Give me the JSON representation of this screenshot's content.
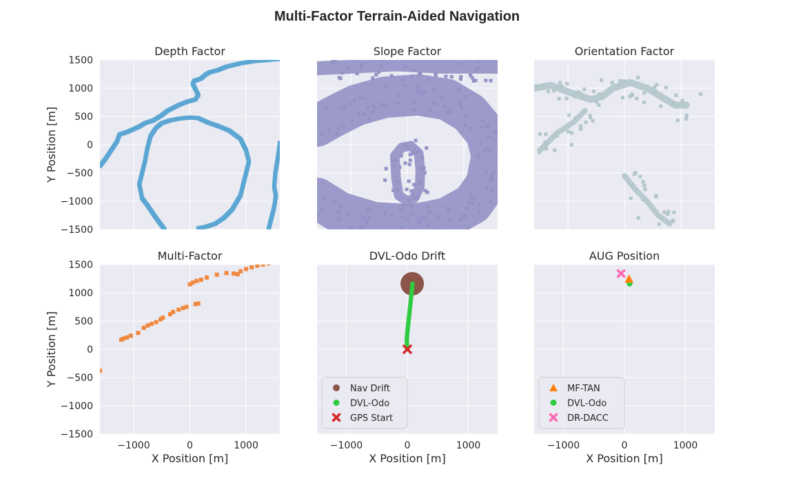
{
  "suptitle": "Multi-Factor Terrain-Aided Navigation",
  "colors": {
    "axes_bg": "#EAEAF2",
    "grid": "#FFFFFF",
    "depth": "#5BA6D3",
    "slope": "#9491C5",
    "orientation": "#B2C6CC",
    "multi": "#F0883E",
    "nav_drift": "#8B5549",
    "dvl_odo": "#2ECC40",
    "gps_start": "#D62728",
    "mf_tan": "#FF7F0E",
    "dr_dacc": "#FF69B4"
  },
  "chart_data": [
    {
      "type": "scatter",
      "title": "Depth Factor",
      "xlabel": "",
      "ylabel": "Y Position [m]",
      "xlim": [
        -1600,
        1600
      ],
      "ylim": [
        -1500,
        1500
      ],
      "xticks": [
        -1000,
        0,
        1000
      ],
      "yticks": [
        1500,
        1000,
        500,
        0,
        -500,
        -1000,
        -1500
      ],
      "ytick_labels": [
        "1500",
        "1000",
        "500",
        "0",
        "−500",
        "−1000",
        "−1500"
      ],
      "grid": true,
      "series": [
        {
          "kind": "contour",
          "color_key": "depth",
          "points": [
            [
              -1600,
              -380
            ],
            [
              -1500,
              -250
            ],
            [
              -1400,
              -100
            ],
            [
              -1300,
              50
            ],
            [
              -1250,
              180
            ],
            [
              -1100,
              230
            ],
            [
              -900,
              320
            ],
            [
              -800,
              380
            ],
            [
              -650,
              430
            ],
            [
              -500,
              520
            ],
            [
              -400,
              600
            ],
            [
              -200,
              700
            ],
            [
              -50,
              760
            ],
            [
              100,
              800
            ],
            [
              150,
              880
            ],
            [
              100,
              980
            ],
            [
              50,
              1080
            ],
            [
              80,
              1130
            ],
            [
              200,
              1170
            ],
            [
              280,
              1240
            ],
            [
              350,
              1280
            ],
            [
              500,
              1320
            ],
            [
              650,
              1380
            ],
            [
              900,
              1440
            ],
            [
              1150,
              1480
            ],
            [
              1400,
              1500
            ],
            [
              1600,
              1520
            ]
          ]
        },
        {
          "kind": "contour",
          "color_key": "depth",
          "points": [
            [
              -450,
              -1500
            ],
            [
              -600,
              -1300
            ],
            [
              -750,
              -1080
            ],
            [
              -850,
              -950
            ],
            [
              -900,
              -700
            ],
            [
              -850,
              -500
            ],
            [
              -800,
              -300
            ],
            [
              -760,
              -80
            ],
            [
              -700,
              150
            ],
            [
              -600,
              300
            ],
            [
              -500,
              380
            ],
            [
              -350,
              430
            ],
            [
              -200,
              460
            ],
            [
              0,
              480
            ],
            [
              150,
              470
            ],
            [
              300,
              400
            ],
            [
              500,
              330
            ],
            [
              700,
              250
            ],
            [
              900,
              100
            ],
            [
              1000,
              -100
            ],
            [
              1050,
              -300
            ],
            [
              1000,
              -500
            ],
            [
              950,
              -700
            ],
            [
              900,
              -900
            ],
            [
              750,
              -1150
            ],
            [
              600,
              -1300
            ],
            [
              450,
              -1400
            ],
            [
              300,
              -1450
            ],
            [
              150,
              -1480
            ]
          ]
        },
        {
          "kind": "contour",
          "color_key": "depth",
          "points": [
            [
              1600,
              30
            ],
            [
              1570,
              -200
            ],
            [
              1520,
              -500
            ],
            [
              1500,
              -750
            ],
            [
              1530,
              -900
            ],
            [
              1500,
              -1100
            ],
            [
              1450,
              -1300
            ],
            [
              1400,
              -1500
            ]
          ]
        }
      ]
    },
    {
      "type": "scatter",
      "title": "Slope Factor",
      "xlabel": "",
      "ylabel": "",
      "xlim": [
        -1600,
        1600
      ],
      "ylim": [
        -1500,
        1500
      ],
      "xticks": [
        -1000,
        0,
        1000
      ],
      "yticks": [
        1500,
        1000,
        500,
        0,
        -500,
        -1000,
        -1500
      ],
      "grid": true,
      "series": [
        {
          "kind": "band",
          "color_key": "slope",
          "width": 20,
          "points": [
            [
              -1600,
              1350
            ],
            [
              -1000,
              1380
            ],
            [
              -200,
              1420
            ],
            [
              600,
              1380
            ],
            [
              1600,
              1380
            ]
          ]
        },
        {
          "kind": "band",
          "color_key": "slope",
          "width": 60,
          "points": [
            [
              -1600,
              330
            ],
            [
              -1300,
              500
            ],
            [
              -900,
              700
            ],
            [
              -400,
              840
            ],
            [
              200,
              880
            ],
            [
              700,
              800
            ],
            [
              1100,
              560
            ],
            [
              1400,
              200
            ],
            [
              1500,
              -200
            ],
            [
              1400,
              -700
            ],
            [
              1150,
              -1050
            ],
            [
              700,
              -1300
            ],
            [
              100,
              -1420
            ],
            [
              -600,
              -1380
            ],
            [
              -1200,
              -1200
            ],
            [
              -1600,
              -950
            ]
          ]
        },
        {
          "kind": "band",
          "color_key": "slope",
          "width": 14,
          "points": [
            [
              0,
              -1000
            ],
            [
              -150,
              -900
            ],
            [
              -200,
              -600
            ],
            [
              -220,
              -200
            ],
            [
              -100,
              -50
            ],
            [
              60,
              -20
            ],
            [
              200,
              -150
            ],
            [
              230,
              -450
            ],
            [
              220,
              -750
            ],
            [
              120,
              -950
            ],
            [
              0,
              -1000
            ]
          ]
        }
      ]
    },
    {
      "type": "scatter",
      "title": "Orientation Factor",
      "xlabel": "",
      "ylabel": "",
      "xlim": [
        -1600,
        1600
      ],
      "ylim": [
        -1500,
        1500
      ],
      "xticks": [
        -1000,
        0,
        1000
      ],
      "yticks": [
        1500,
        1000,
        500,
        0,
        -500,
        -1000,
        -1500
      ],
      "grid": true,
      "series": [
        {
          "kind": "band",
          "color_key": "orientation",
          "width": 10,
          "points": [
            [
              -1600,
              1000
            ],
            [
              -1300,
              1050
            ],
            [
              -900,
              900
            ],
            [
              -600,
              800
            ],
            [
              -400,
              850
            ],
            [
              -200,
              1000
            ],
            [
              100,
              1100
            ],
            [
              400,
              1000
            ],
            [
              700,
              820
            ],
            [
              900,
              700
            ],
            [
              1100,
              700
            ]
          ]
        },
        {
          "kind": "band",
          "color_key": "orientation",
          "width": 8,
          "points": [
            [
              -1500,
              -100
            ],
            [
              -1200,
              200
            ],
            [
              -900,
              400
            ],
            [
              -700,
              600
            ]
          ]
        },
        {
          "kind": "band",
          "color_key": "orientation",
          "width": 8,
          "points": [
            [
              0,
              -550
            ],
            [
              200,
              -800
            ],
            [
              400,
              -1000
            ],
            [
              600,
              -1250
            ],
            [
              800,
              -1400
            ]
          ]
        }
      ]
    },
    {
      "type": "scatter",
      "title": "Multi-Factor",
      "xlabel": "X Position [m]",
      "ylabel": "Y Position [m]",
      "xlim": [
        -1600,
        1600
      ],
      "ylim": [
        -1500,
        1500
      ],
      "xticks": [
        -1000,
        0,
        1000
      ],
      "xtick_labels": [
        "−1000",
        "0",
        "1000"
      ],
      "yticks": [
        1500,
        1000,
        500,
        0,
        -500,
        -1000,
        -1500
      ],
      "ytick_labels": [
        "1500",
        "1000",
        "500",
        "0",
        "−500",
        "−1000",
        "−1500"
      ],
      "grid": true,
      "series": [
        {
          "kind": "points",
          "color_key": "multi",
          "points": [
            [
              -1600,
              -380
            ],
            [
              -1220,
              170
            ],
            [
              -1180,
              190
            ],
            [
              -1120,
              210
            ],
            [
              -1050,
              240
            ],
            [
              -920,
              290
            ],
            [
              -820,
              380
            ],
            [
              -750,
              420
            ],
            [
              -680,
              450
            ],
            [
              -600,
              480
            ],
            [
              -520,
              530
            ],
            [
              -480,
              560
            ],
            [
              -350,
              620
            ],
            [
              -300,
              660
            ],
            [
              -200,
              700
            ],
            [
              -120,
              730
            ],
            [
              -60,
              750
            ],
            [
              100,
              800
            ],
            [
              150,
              810
            ],
            [
              0,
              1150
            ],
            [
              50,
              1180
            ],
            [
              120,
              1210
            ],
            [
              200,
              1230
            ],
            [
              300,
              1270
            ],
            [
              480,
              1320
            ],
            [
              650,
              1350
            ],
            [
              780,
              1340
            ],
            [
              850,
              1330
            ],
            [
              900,
              1380
            ],
            [
              1000,
              1420
            ],
            [
              1100,
              1450
            ],
            [
              1200,
              1480
            ],
            [
              1300,
              1500
            ],
            [
              1400,
              1520
            ]
          ]
        }
      ]
    },
    {
      "type": "scatter",
      "title": "DVL-Odo Drift",
      "xlabel": "X Position [m]",
      "ylabel": "",
      "xlim": [
        -1480,
        1480
      ],
      "ylim": [
        -1500,
        1500
      ],
      "xticks": [
        -1000,
        0,
        1000
      ],
      "xtick_labels": [
        "−1000",
        "0",
        "1000"
      ],
      "yticks": [
        1500,
        1000,
        500,
        0,
        -500,
        -1000,
        -1500
      ],
      "grid": true,
      "nav_drift": {
        "x": 80,
        "y": 1160
      },
      "dvl_odo": [
        [
          0,
          0
        ],
        [
          -10,
          150
        ],
        [
          0,
          300
        ],
        [
          15,
          450
        ],
        [
          30,
          600
        ],
        [
          45,
          750
        ],
        [
          60,
          900
        ],
        [
          75,
          1050
        ],
        [
          85,
          1160
        ]
      ],
      "gps_start": {
        "x": 0,
        "y": 0
      },
      "legend": {
        "placement": "lower-left",
        "labels": [
          "Nav Drift",
          "DVL-Odo",
          "GPS Start"
        ]
      }
    },
    {
      "type": "scatter",
      "title": "AUG Position",
      "xlabel": "X Position [m]",
      "ylabel": "",
      "xlim": [
        -1480,
        1480
      ],
      "ylim": [
        -1500,
        1500
      ],
      "xticks": [
        -1000,
        0,
        1000
      ],
      "xtick_labels": [
        "−1000",
        "0",
        "1000"
      ],
      "yticks": [
        1500,
        1000,
        500,
        0,
        -500,
        -1000,
        -1500
      ],
      "grid": true,
      "mf_tan": {
        "x": 75,
        "y": 1240
      },
      "dvl_odo": {
        "x": 85,
        "y": 1160
      },
      "dr_dacc": {
        "x": -55,
        "y": 1340
      },
      "legend": {
        "placement": "lower-left",
        "labels": [
          "MF-TAN",
          "DVL-Odo",
          "DR-DACC"
        ]
      }
    }
  ]
}
